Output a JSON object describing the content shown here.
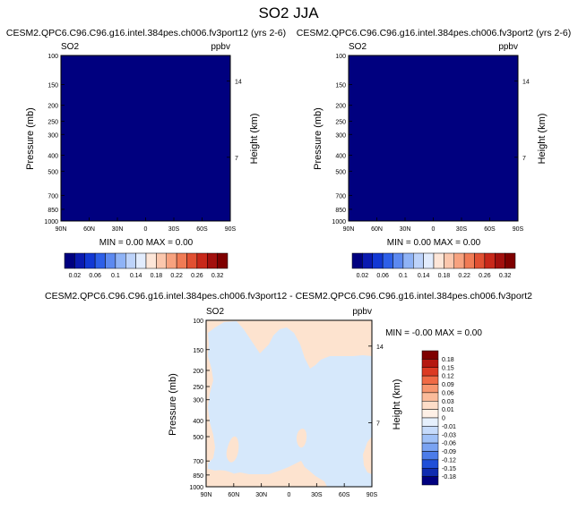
{
  "title": "SO2 JJA",
  "panels": [
    {
      "case": "CESM2.QPC6.C96.C96.g16.intel.384pes.ch006.fv3port12 (yrs 2-6)",
      "variable": "SO2",
      "units": "ppbv",
      "ylabel": "Pressure (mb)",
      "ylabel_right": "Height (km)",
      "stats": "MIN =  0.00  MAX =  0.00",
      "fill_color": "#00007f"
    },
    {
      "case": "CESM2.QPC6.C96.C96.g16.intel.384pes.ch006.fv3port2 (yrs 2-6)",
      "variable": "SO2",
      "units": "ppbv",
      "ylabel": "Pressure (mb)",
      "ylabel_right": "Height (km)",
      "stats": "MIN =  0.00  MAX =  0.00",
      "fill_color": "#00007f"
    },
    {
      "case": "CESM2.QPC6.C96.C96.g16.intel.384pes.ch006.fv3port12 - CESM2.QPC6.C96.C96.g16.intel.384pes.ch006.fv3port2",
      "variable": "SO2",
      "units": "ppbv",
      "ylabel": "Pressure (mb)",
      "ylabel_right": "Height (km)",
      "stats": "MIN = -0.00  MAX =  0.00"
    }
  ],
  "chart_data": [
    {
      "type": "heatmap",
      "x_ticks": [
        "90N",
        "60N",
        "30N",
        "0",
        "30S",
        "60S",
        "90S"
      ],
      "y_ticks": [
        "100",
        "150",
        "200",
        "250",
        "300",
        "400",
        "500",
        "700",
        "850",
        "1000"
      ],
      "y_ticks_right": [
        "14",
        "7"
      ],
      "ylim": [
        1000,
        100
      ],
      "colorbar": {
        "labels": [
          "0.02",
          "0.06",
          "0.1",
          "0.14",
          "0.18",
          "0.22",
          "0.26",
          "0.32"
        ],
        "colors": [
          "#00007f",
          "#0a1ab0",
          "#1238d4",
          "#2d5fe8",
          "#5c89f0",
          "#8fb3f6",
          "#bdd3fa",
          "#e2ecfd",
          "#fde6d8",
          "#fbc7ad",
          "#f7a27f",
          "#f07b55",
          "#e15032",
          "#c8281a",
          "#a3100e",
          "#7f0000"
        ]
      }
    },
    {
      "type": "heatmap",
      "x_ticks": [
        "90N",
        "60N",
        "30N",
        "0",
        "30S",
        "60S",
        "90S"
      ],
      "y_ticks": [
        "100",
        "150",
        "200",
        "250",
        "300",
        "400",
        "500",
        "700",
        "850",
        "1000"
      ],
      "y_ticks_right": [
        "14",
        "7"
      ],
      "ylim": [
        1000,
        100
      ],
      "colorbar": {
        "labels": [
          "0.02",
          "0.06",
          "0.1",
          "0.14",
          "0.18",
          "0.22",
          "0.26",
          "0.32"
        ],
        "colors": [
          "#00007f",
          "#0a1ab0",
          "#1238d4",
          "#2d5fe8",
          "#5c89f0",
          "#8fb3f6",
          "#bdd3fa",
          "#e2ecfd",
          "#fde6d8",
          "#fbc7ad",
          "#f7a27f",
          "#f07b55",
          "#e15032",
          "#c8281a",
          "#a3100e",
          "#7f0000"
        ]
      }
    },
    {
      "type": "heatmap",
      "x_ticks": [
        "90N",
        "60N",
        "30N",
        "0",
        "30S",
        "60S",
        "90S"
      ],
      "y_ticks": [
        "100",
        "150",
        "200",
        "250",
        "300",
        "400",
        "500",
        "700",
        "850",
        "1000"
      ],
      "y_ticks_right": [
        "14",
        "7"
      ],
      "ylim": [
        1000,
        100
      ],
      "colorbar": {
        "labels": [
          "0.18",
          "0.15",
          "0.12",
          "0.09",
          "0.06",
          "0.03",
          "0.01",
          "0",
          "-0.01",
          "-0.03",
          "-0.06",
          "-0.09",
          "-0.12",
          "-0.15",
          "-0.18"
        ],
        "colors": [
          "#7f0000",
          "#b5170f",
          "#dc3a22",
          "#f06a45",
          "#f7966f",
          "#fbbb9a",
          "#fdddc8",
          "#fef0e6",
          "#e6f0fd",
          "#c6dbfb",
          "#a0c1f7",
          "#7aa3f2",
          "#4c7ce9",
          "#1f4fd8",
          "#0f2cb0",
          "#00007f"
        ]
      },
      "regions": {
        "background": "#fde3cf",
        "negative": "#d6e8fb"
      }
    }
  ]
}
